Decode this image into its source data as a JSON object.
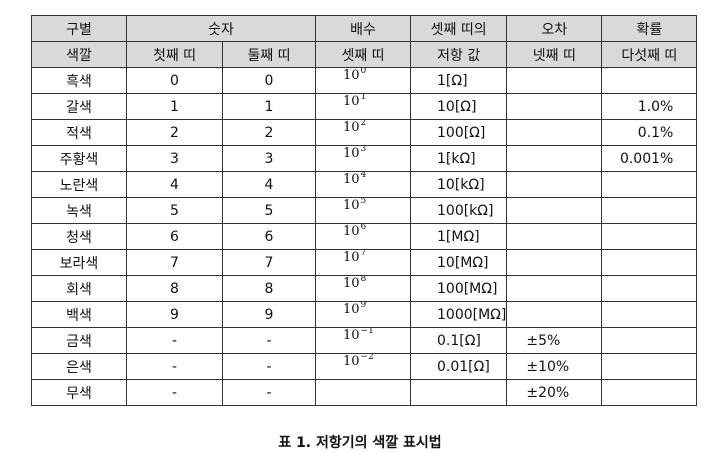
{
  "header_row1": [
    "구별",
    "숫자",
    "배수",
    "셋째 띠의",
    "오차",
    "확률"
  ],
  "header_row2": [
    "색깔",
    "첫째 띠",
    "둘째 띠",
    "셋째 띠",
    "저항 값",
    "넷째 띠",
    "다섯째 띠"
  ],
  "rows": [
    {
      "color": "흑색",
      "first": "0",
      "second": "0",
      "mult_base": "10",
      "mult_exp": "0",
      "resistance": "1[Ω]",
      "tolerance": "",
      "probability": ""
    },
    {
      "color": "갈색",
      "first": "1",
      "second": "1",
      "mult_base": "10",
      "mult_exp": "1",
      "resistance": "10[Ω]",
      "tolerance": "",
      "probability": "1.0%"
    },
    {
      "color": "적색",
      "first": "2",
      "second": "2",
      "mult_base": "10",
      "mult_exp": "2",
      "resistance": "100[Ω]",
      "tolerance": "",
      "probability": "0.1%"
    },
    {
      "color": "주황색",
      "first": "3",
      "second": "3",
      "mult_base": "10",
      "mult_exp": "3",
      "resistance": "1[kΩ]",
      "tolerance": "",
      "probability": "0.001%"
    },
    {
      "color": "노란색",
      "first": "4",
      "second": "4",
      "mult_base": "10",
      "mult_exp": "4",
      "resistance": "10[kΩ]",
      "tolerance": "",
      "probability": ""
    },
    {
      "color": "녹색",
      "first": "5",
      "second": "5",
      "mult_base": "10",
      "mult_exp": "5",
      "resistance": "100[kΩ]",
      "tolerance": "",
      "probability": ""
    },
    {
      "color": "청색",
      "first": "6",
      "second": "6",
      "mult_base": "10",
      "mult_exp": "6",
      "resistance": "1[MΩ]",
      "tolerance": "",
      "probability": ""
    },
    {
      "color": "보라색",
      "first": "7",
      "second": "7",
      "mult_base": "10",
      "mult_exp": "7",
      "resistance": "10[MΩ]",
      "tolerance": "",
      "probability": ""
    },
    {
      "color": "회색",
      "first": "8",
      "second": "8",
      "mult_base": "10",
      "mult_exp": "8",
      "resistance": "100[MΩ]",
      "tolerance": "",
      "probability": ""
    },
    {
      "color": "백색",
      "first": "9",
      "second": "9",
      "mult_base": "10",
      "mult_exp": "9",
      "resistance": "1000[MΩ]",
      "tolerance": "",
      "probability": ""
    },
    {
      "color": "금색",
      "first": "-",
      "second": "-",
      "mult_base": "10",
      "mult_exp": "−1",
      "resistance": "0.1[Ω]",
      "tolerance": "±5%",
      "probability": ""
    },
    {
      "color": "은색",
      "first": "-",
      "second": "-",
      "mult_base": "10",
      "mult_exp": "−2",
      "resistance": "0.01[Ω]",
      "tolerance": "±10%",
      "probability": ""
    },
    {
      "color": "무색",
      "first": "-",
      "second": "-",
      "mult_base": "",
      "mult_exp": "",
      "resistance": "",
      "tolerance": "±20%",
      "probability": ""
    }
  ],
  "caption": "표 1. 저항기의 색깔 표시법",
  "colors": {
    "header_bg": "#d9d9d9",
    "border": "#333333"
  }
}
